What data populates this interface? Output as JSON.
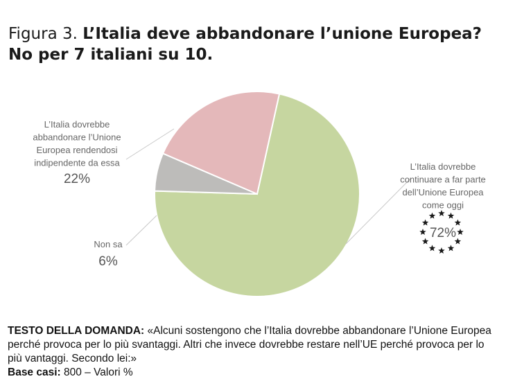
{
  "title": {
    "prefix": "Figura 3.",
    "main": "L’Italia deve abbandonare l’unione Europea? No per 7 italiani su 10."
  },
  "chart_data": {
    "type": "pie",
    "slices": [
      {
        "key": "continuare",
        "value": 72,
        "value_label": "72%",
        "label_lines": [
          "L’Italia dovrebbe",
          "continuare a far parte",
          "dell’Unione Europea",
          "come oggi"
        ],
        "color": "#c6d6a0"
      },
      {
        "key": "nonsa",
        "value": 6,
        "value_label": "6%",
        "label_lines": [
          "Non sa"
        ],
        "color": "#bdbcba"
      },
      {
        "key": "abbandonare",
        "value": 22,
        "value_label": "22%",
        "label_lines": [
          "L’Italia dovrebbe",
          "abbandonare l’Unione",
          "Europea rendendosi",
          "indipendente da essa"
        ],
        "color": "#e4b8ba"
      }
    ],
    "star_color": "#1a1a1a"
  },
  "footer": {
    "question_label": "TESTO DELLA DOMANDA:",
    "question_text": "«Alcuni sostengono che l’Italia dovrebbe abbandonare l’Unione Europea perché provoca per lo più svantaggi. Altri che invece dovrebbe restare nell’UE perché provoca per lo più vantaggi. Secondo lei:»",
    "base_label": "Base casi:",
    "base_text": "800 – Valori %"
  }
}
